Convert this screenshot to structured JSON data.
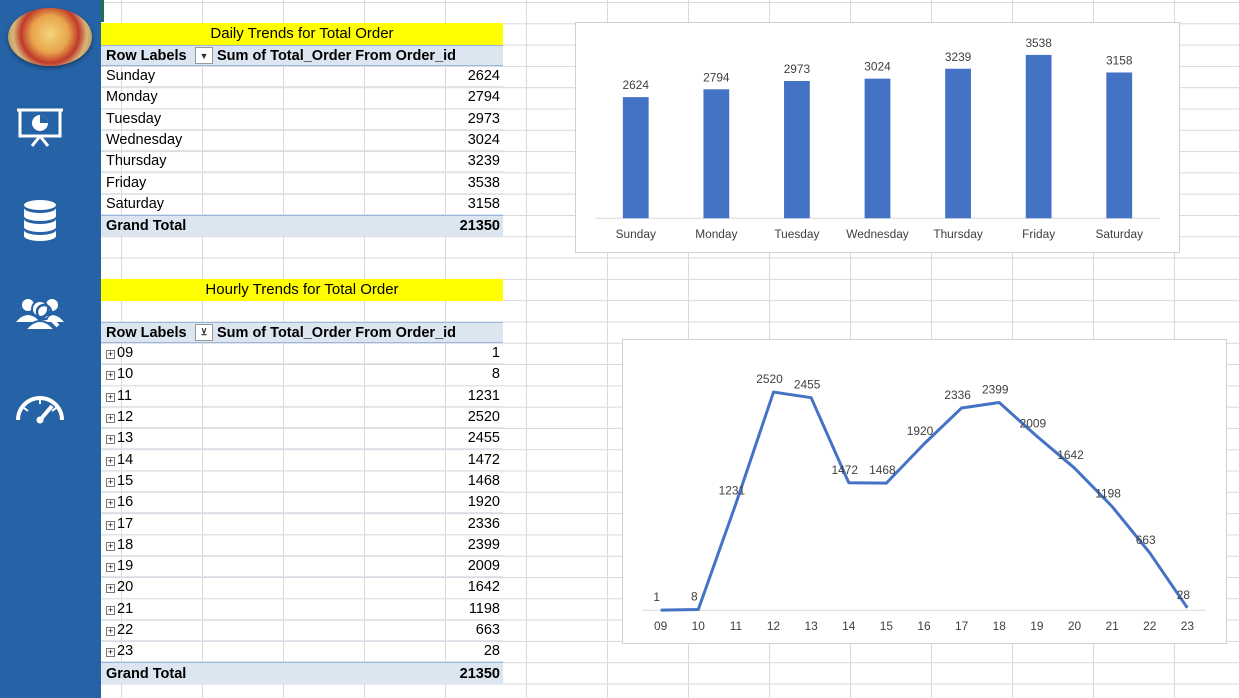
{
  "sidebar": {
    "icons": [
      "pizza-logo",
      "presentation-chart-icon",
      "database-icon",
      "users-icon",
      "speedometer-icon"
    ]
  },
  "daily_table": {
    "title": "Daily Trends for Total Order",
    "row_labels": "Row Labels",
    "value_header": "Sum of Total_Order From Order_id",
    "rows": [
      {
        "label": "Sunday",
        "value": "2624"
      },
      {
        "label": "Monday",
        "value": "2794"
      },
      {
        "label": "Tuesday",
        "value": "2973"
      },
      {
        "label": "Wednesday",
        "value": "3024"
      },
      {
        "label": "Thursday",
        "value": "3239"
      },
      {
        "label": "Friday",
        "value": "3538"
      },
      {
        "label": "Saturday",
        "value": "3158"
      }
    ],
    "total_label": "Grand Total",
    "total_value": "21350"
  },
  "hourly_table": {
    "title": "Hourly Trends for Total Order",
    "row_labels": "Row Labels",
    "value_header": "Sum of Total_Order From Order_id",
    "rows": [
      {
        "label": "09",
        "value": "1"
      },
      {
        "label": "10",
        "value": "8"
      },
      {
        "label": "11",
        "value": "1231"
      },
      {
        "label": "12",
        "value": "2520"
      },
      {
        "label": "13",
        "value": "2455"
      },
      {
        "label": "14",
        "value": "1472"
      },
      {
        "label": "15",
        "value": "1468"
      },
      {
        "label": "16",
        "value": "1920"
      },
      {
        "label": "17",
        "value": "2336"
      },
      {
        "label": "18",
        "value": "2399"
      },
      {
        "label": "19",
        "value": "2009"
      },
      {
        "label": "20",
        "value": "1642"
      },
      {
        "label": "21",
        "value": "1198"
      },
      {
        "label": "22",
        "value": "663"
      },
      {
        "label": "23",
        "value": "28"
      }
    ],
    "total_label": "Grand Total",
    "total_value": "21350"
  },
  "colors": {
    "sidebar": "#2563a6",
    "title_fill": "#ffff00",
    "header_fill": "#dce6f1",
    "series": "#4472c4"
  },
  "chart_data": [
    {
      "type": "bar",
      "categories": [
        "Sunday",
        "Monday",
        "Tuesday",
        "Wednesday",
        "Thursday",
        "Friday",
        "Saturday"
      ],
      "values": [
        2624,
        2794,
        2973,
        3024,
        3239,
        3538,
        3158
      ],
      "ylim": [
        0,
        3800
      ],
      "grid": false,
      "legend": "none"
    },
    {
      "type": "line",
      "categories": [
        "09",
        "10",
        "11",
        "12",
        "13",
        "14",
        "15",
        "16",
        "17",
        "18",
        "19",
        "20",
        "21",
        "22",
        "23"
      ],
      "values": [
        1,
        8,
        1231,
        2520,
        2455,
        1472,
        1468,
        1920,
        2336,
        2399,
        2009,
        1642,
        1198,
        663,
        28
      ],
      "ylim": [
        0,
        2800
      ],
      "grid": false,
      "legend": "none"
    }
  ]
}
